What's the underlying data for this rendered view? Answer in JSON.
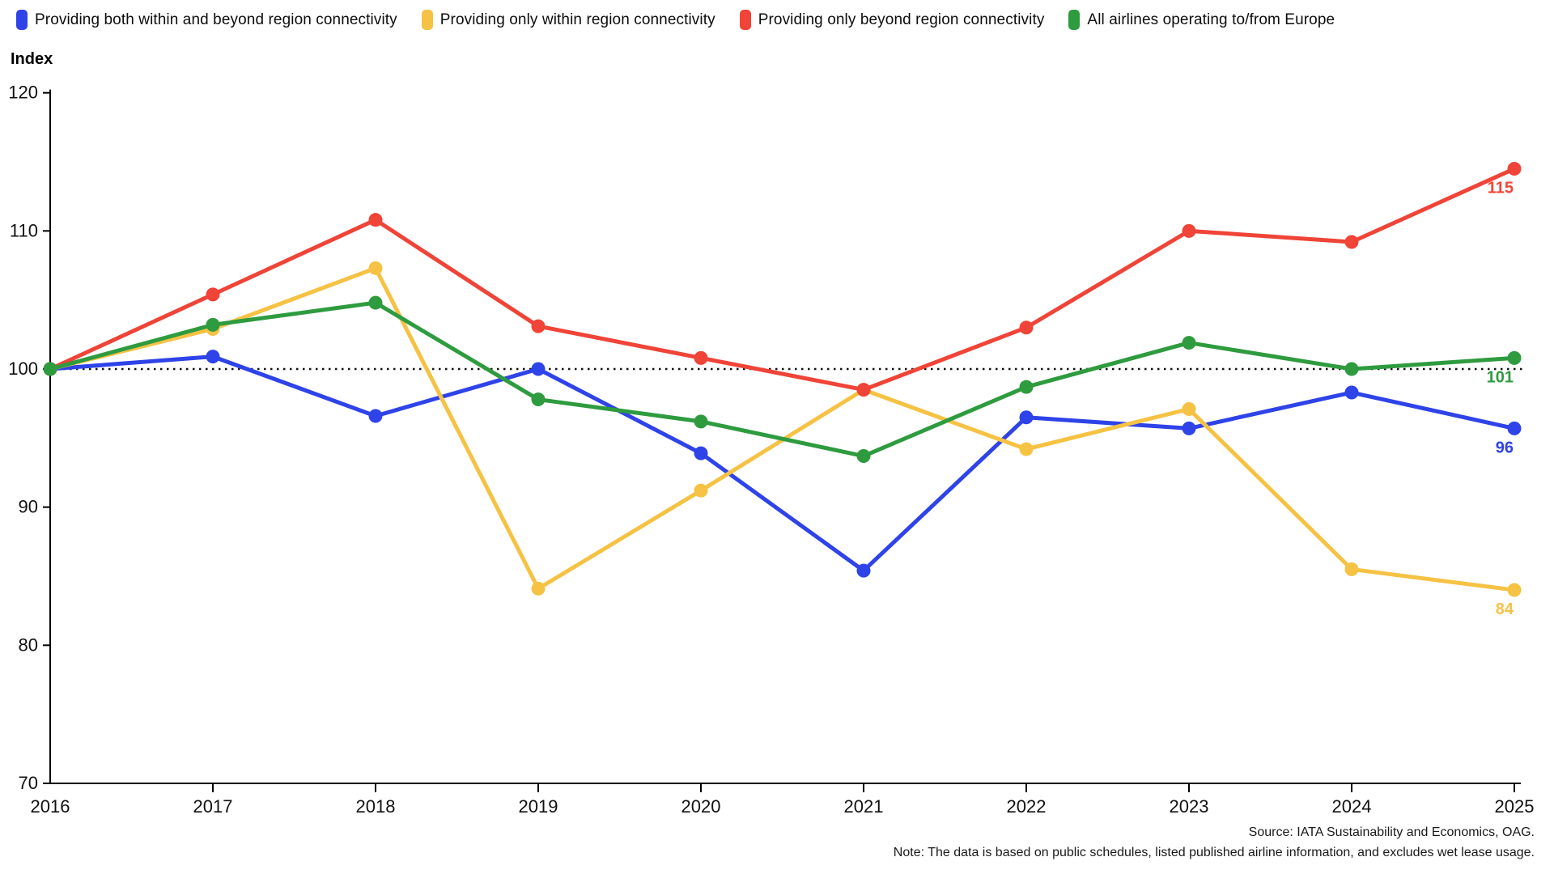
{
  "legend": [
    {
      "label": "Providing both within and beyond region connectivity",
      "color": "#2e43e8"
    },
    {
      "label": "Providing only within region connectivity",
      "color": "#f6c244"
    },
    {
      "label": "Providing only beyond region connectivity",
      "color": "#ef4437"
    },
    {
      "label": "All airlines operating to/from Europe",
      "color": "#2e9b3f"
    }
  ],
  "chart_data": {
    "type": "line",
    "title": "",
    "ylabel": "Index",
    "xlabel": "",
    "categories": [
      "2016",
      "2017",
      "2018",
      "2019",
      "2020",
      "2021",
      "2022",
      "2023",
      "2024",
      "2025"
    ],
    "ylim": [
      70,
      120
    ],
    "yticks": [
      120,
      110,
      100,
      90,
      80,
      70
    ],
    "reference_line": 100,
    "grid": false,
    "legend_position": "top",
    "series": [
      {
        "name": "Providing both within and beyond region connectivity",
        "color": "#2e43e8",
        "values": [
          100,
          100.9,
          96.6,
          100,
          93.9,
          85.4,
          96.5,
          95.7,
          98.3,
          95.7
        ],
        "end_label": "96"
      },
      {
        "name": "Providing only within region connectivity",
        "color": "#f6c244",
        "values": [
          100,
          102.9,
          107.3,
          84.1,
          91.2,
          98.5,
          94.2,
          97.1,
          85.5,
          84
        ],
        "end_label": "84"
      },
      {
        "name": "Providing only beyond region connectivity",
        "color": "#ef4437",
        "values": [
          100,
          105.4,
          110.8,
          103.1,
          100.8,
          98.5,
          103,
          110,
          109.2,
          114.5
        ],
        "end_label": "115"
      },
      {
        "name": "All airlines operating to/from Europe",
        "color": "#2e9b3f",
        "values": [
          100,
          103.2,
          104.8,
          97.8,
          96.2,
          93.7,
          98.7,
          101.9,
          100,
          100.8
        ],
        "end_label": "101"
      }
    ]
  },
  "footer": {
    "source": "Source: IATA Sustainability and Economics, OAG.",
    "note": "Note: The data is based on public schedules, listed published airline information, and excludes wet lease usage."
  }
}
